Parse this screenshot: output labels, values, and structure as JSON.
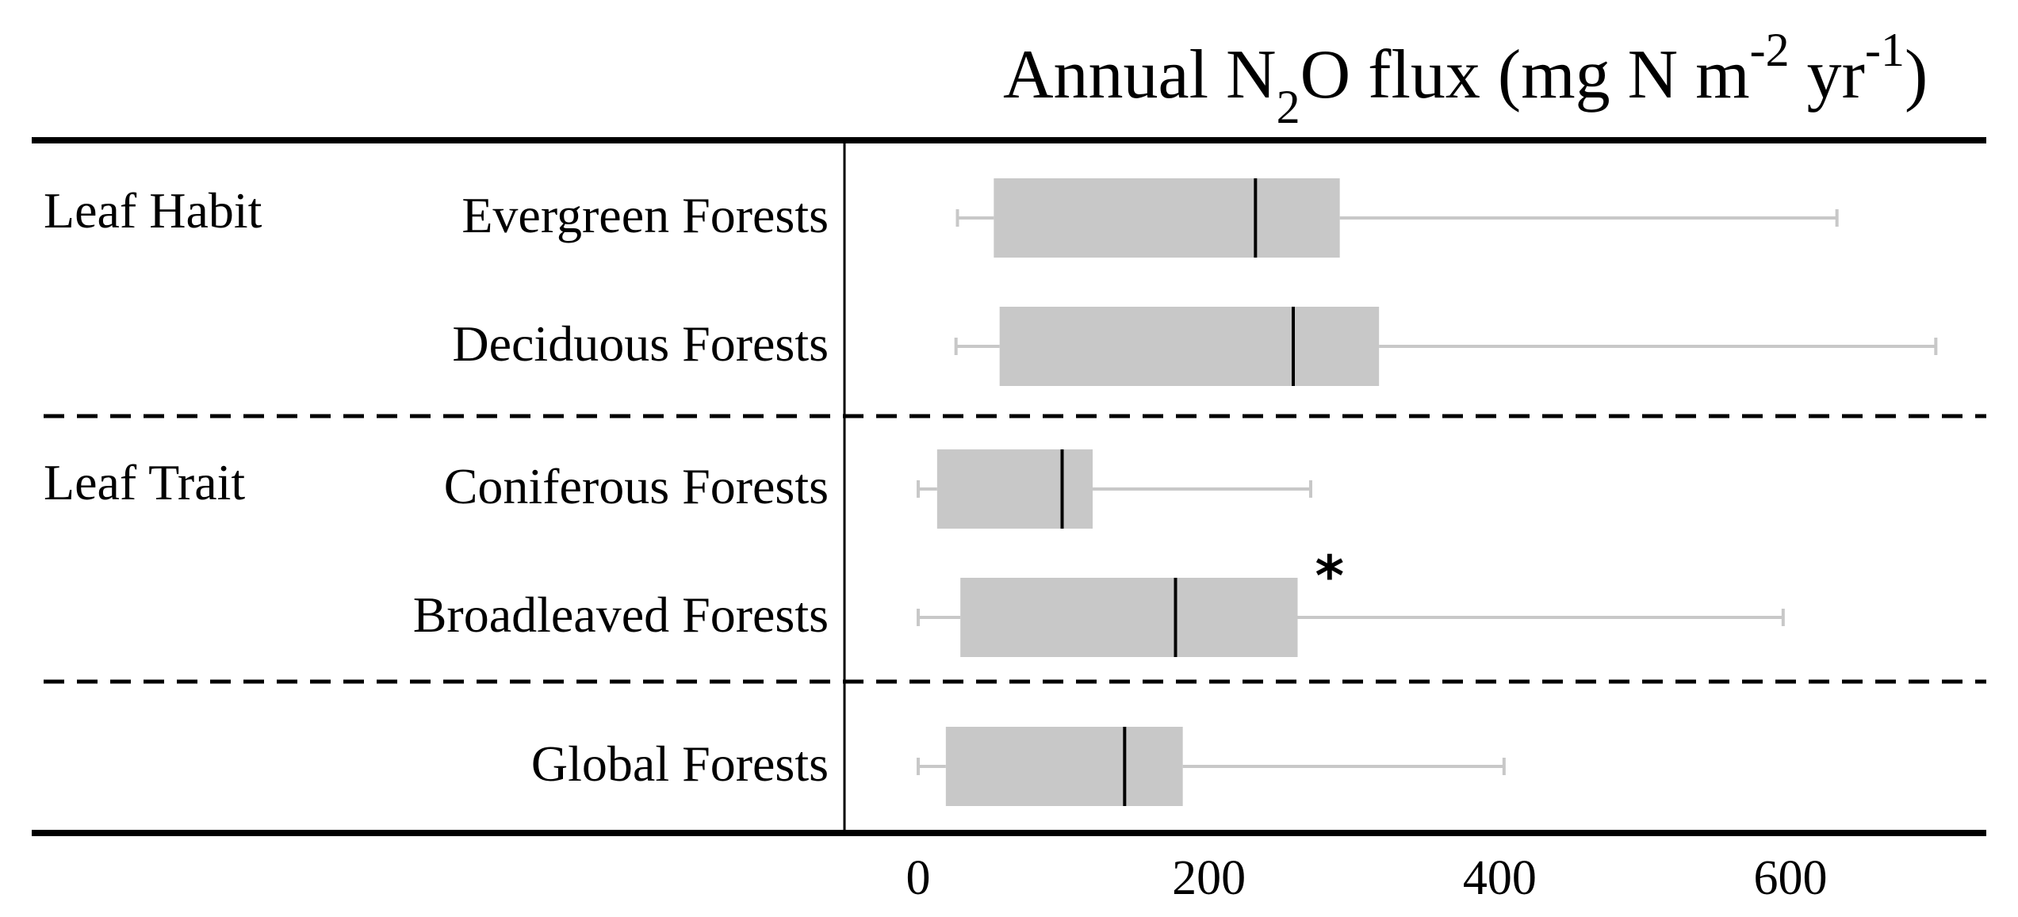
{
  "chart_data": {
    "type": "boxplot",
    "title": {
      "prefix": "Annual N",
      "sub": "2",
      "middle": "O flux (mg N m",
      "sup1": "-2",
      "middle2": " yr",
      "sup2": "-1",
      "suffix": ")"
    },
    "x_ticks": [
      0,
      200,
      400,
      600
    ],
    "xlim": [
      -50,
      730
    ],
    "groups": [
      {
        "label": "Leaf Habit"
      },
      {
        "label": "Leaf Trait"
      }
    ],
    "boxes": [
      {
        "label": "Evergreen Forests",
        "whisker_low": 27,
        "q1": 52,
        "median": 232,
        "q3": 290,
        "whisker_high": 632
      },
      {
        "label": "Deciduous Forests",
        "whisker_low": 26,
        "q1": 56,
        "median": 258,
        "q3": 317,
        "whisker_high": 700
      },
      {
        "label": "Coniferous Forests",
        "whisker_low": 0,
        "q1": 13,
        "median": 99,
        "q3": 120,
        "whisker_high": 270
      },
      {
        "label": "Broadleaved Forests",
        "whisker_low": 0,
        "q1": 29,
        "median": 177,
        "q3": 261,
        "whisker_high": 595,
        "annotation": "*"
      },
      {
        "label": "Global Forests",
        "whisker_low": 0,
        "q1": 19,
        "median": 142,
        "q3": 182,
        "whisker_high": 403
      }
    ]
  }
}
